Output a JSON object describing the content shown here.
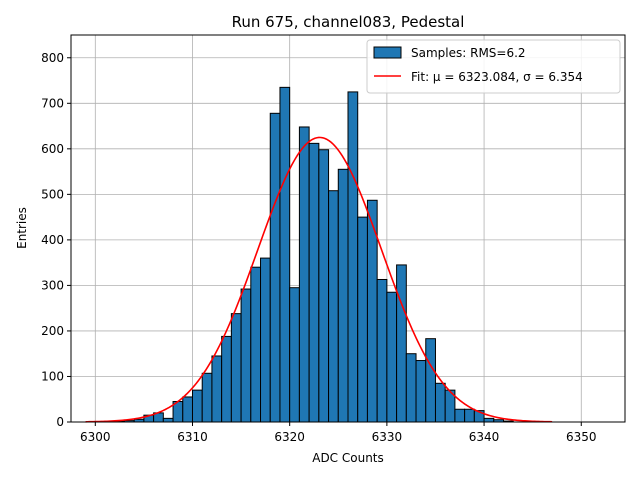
{
  "chart_data": {
    "type": "bar",
    "title": "Run 675, channel083, Pedestal",
    "xlabel": "ADC Counts",
    "ylabel": "Entries",
    "xlim": [
      6297.5,
      6354.5
    ],
    "ylim": [
      0,
      850
    ],
    "xticks": [
      6300,
      6310,
      6320,
      6330,
      6340,
      6350
    ],
    "yticks": [
      0,
      100,
      200,
      300,
      400,
      500,
      600,
      700,
      800
    ],
    "grid": true,
    "legend_position": "top-right",
    "colors": {
      "bars": "#1f77b4",
      "bar_edge": "#000000",
      "fit": "#ff0000",
      "grid": "#b0b0b0"
    },
    "histogram": {
      "name": "Samples: RMS=6.2",
      "bin_width": 1,
      "bin_start": [
        6302,
        6303,
        6304,
        6305,
        6306,
        6307,
        6308,
        6309,
        6310,
        6311,
        6312,
        6313,
        6314,
        6315,
        6316,
        6317,
        6318,
        6319,
        6320,
        6321,
        6322,
        6323,
        6324,
        6325,
        6326,
        6327,
        6328,
        6329,
        6330,
        6331,
        6332,
        6333,
        6334,
        6335,
        6336,
        6337,
        6338,
        6339,
        6340,
        6341,
        6342
      ],
      "values": [
        2,
        3,
        6,
        15,
        20,
        8,
        45,
        55,
        70,
        107,
        145,
        188,
        238,
        292,
        340,
        360,
        678,
        735,
        295,
        648,
        612,
        598,
        508,
        555,
        725,
        450,
        487,
        313,
        285,
        345,
        150,
        135,
        183,
        85,
        70,
        28,
        28,
        25,
        8,
        5,
        2
      ]
    },
    "fit": {
      "name": "Fit: μ = 6323.084, σ = 6.354",
      "mu": 6323.084,
      "sigma": 6.354,
      "amplitude": 625,
      "x_range": [
        6299,
        6347
      ]
    }
  }
}
